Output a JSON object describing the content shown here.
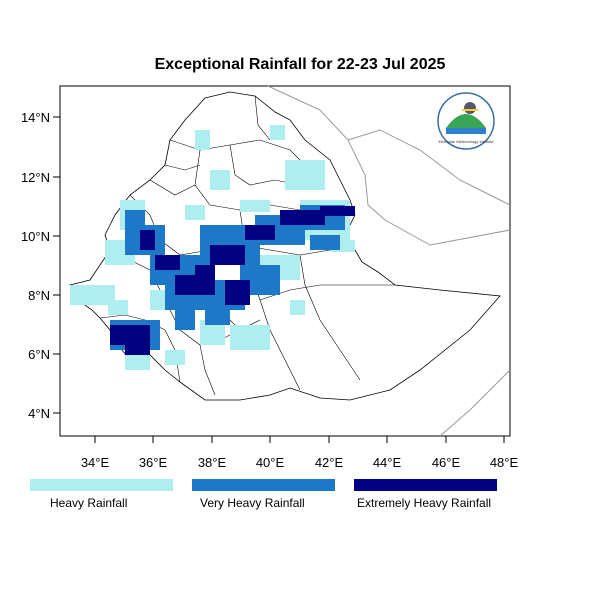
{
  "title": "Exceptional Rainfall for 22-23 Jul 2025",
  "axes": {
    "x_ticks": [
      "34°E",
      "36°E",
      "38°E",
      "40°E",
      "42°E",
      "44°E",
      "46°E",
      "48°E"
    ],
    "y_ticks": [
      "14°N",
      "12°N",
      "10°N",
      "8°N",
      "6°N",
      "4°N"
    ],
    "lon_range": [
      32.8,
      48.2
    ],
    "lat_range": [
      3.2,
      15.2
    ]
  },
  "legend": [
    {
      "label": "Heavy Rainfall",
      "color": "#aeeeee"
    },
    {
      "label": "Very Heavy Rainfall",
      "color": "#1e78c8"
    },
    {
      "label": "Extremely Heavy Rainfall",
      "color": "#000080"
    }
  ],
  "colors": {
    "heavy": "#aeeeee",
    "very_heavy": "#1e78c8",
    "extreme": "#000080",
    "boundary": "#000000",
    "neighbor_boundary": "#999999"
  },
  "logo": {
    "text": "Ethiopian Meteorology Institute",
    "icon": "emi-logo-icon"
  }
}
